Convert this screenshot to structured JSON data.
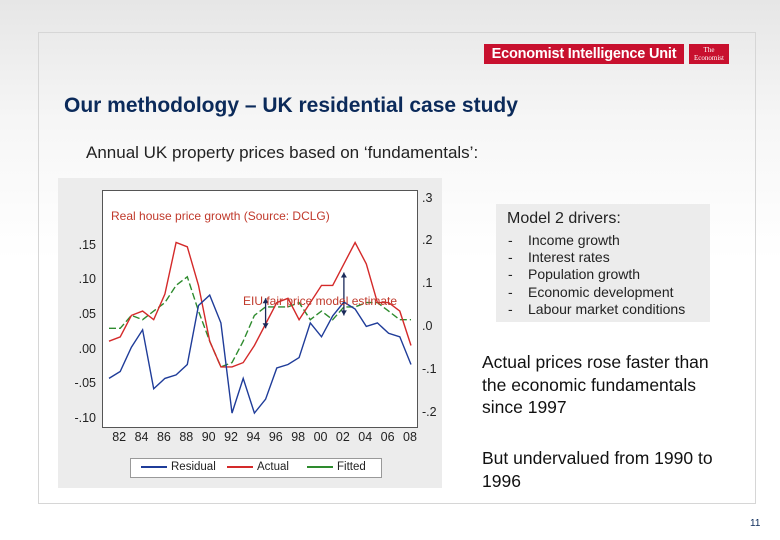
{
  "header": {
    "logo_text": "Economist Intelligence Unit",
    "secondary_logo_text": "The Economist"
  },
  "slide": {
    "title": "Our methodology – UK residential case study",
    "subtitle": "Annual UK  property prices based on ‘fundamentals’:",
    "page_number": "11"
  },
  "chart_annotations": {
    "top_label": "Real house price growth (Source: DCLG)",
    "bottom_label": "EIU fair price model estimate"
  },
  "drivers": {
    "title": "Model 2 drivers:",
    "items": [
      "Income growth",
      "Interest rates",
      "Population growth",
      "Economic development",
      "Labour market conditions"
    ]
  },
  "commentary": {
    "para1": "Actual prices rose faster than the economic fundamentals since 1997",
    "para2": "But undervalued from 1990 to 1996"
  },
  "colors": {
    "residual": "#1f3c99",
    "actual": "#d42a2a",
    "fitted": "#2e8b2e",
    "brand_red": "#c8102e",
    "title_navy": "#0b2a5a"
  },
  "chart_data": {
    "type": "line",
    "x": [
      1981,
      1982,
      1983,
      1984,
      1985,
      1986,
      1987,
      1988,
      1989,
      1990,
      1991,
      1992,
      1993,
      1994,
      1995,
      1996,
      1997,
      1998,
      1999,
      2000,
      2001,
      2002,
      2003,
      2004,
      2005,
      2006,
      2007,
      2008
    ],
    "x_tick_labels": [
      "82",
      "84",
      "86",
      "88",
      "90",
      "92",
      "94",
      "96",
      "98",
      "00",
      "02",
      "04",
      "06",
      "08"
    ],
    "left_axis": {
      "ticks": [
        ".15",
        ".10",
        ".05",
        ".00",
        "-.05",
        "-.10"
      ],
      "range": [
        -0.11,
        0.23
      ]
    },
    "right_axis": {
      "ticks": [
        ".3",
        ".2",
        ".1",
        ".0",
        "-.1",
        "-.2"
      ],
      "range": [
        -0.23,
        0.32
      ]
    },
    "series": [
      {
        "name": "Residual",
        "axis": "left",
        "values": [
          -0.04,
          -0.03,
          0.005,
          0.03,
          -0.055,
          -0.04,
          -0.035,
          -0.02,
          0.065,
          0.08,
          0.04,
          -0.09,
          -0.04,
          -0.09,
          -0.07,
          -0.025,
          -0.02,
          -0.01,
          0.04,
          0.02,
          0.05,
          0.07,
          0.06,
          0.035,
          0.04,
          0.025,
          0.02,
          -0.02
        ]
      },
      {
        "name": "Actual",
        "axis": "right",
        "values": [
          -0.03,
          -0.02,
          0.03,
          0.04,
          0.02,
          0.08,
          0.2,
          0.19,
          0.1,
          -0.03,
          -0.09,
          -0.09,
          -0.08,
          -0.04,
          0.01,
          0.06,
          0.07,
          0.02,
          0.06,
          0.1,
          0.1,
          0.15,
          0.2,
          0.15,
          0.06,
          0.06,
          0.04,
          -0.04
        ]
      },
      {
        "name": "Fitted",
        "axis": "right",
        "values": [
          0.0,
          0.0,
          0.03,
          0.02,
          0.04,
          0.06,
          0.1,
          0.12,
          0.04,
          -0.03,
          -0.09,
          -0.08,
          -0.03,
          0.03,
          0.05,
          0.05,
          0.05,
          0.06,
          0.02,
          0.04,
          0.02,
          0.05,
          0.05,
          0.06,
          0.06,
          0.04,
          0.02,
          0.02
        ]
      }
    ]
  }
}
